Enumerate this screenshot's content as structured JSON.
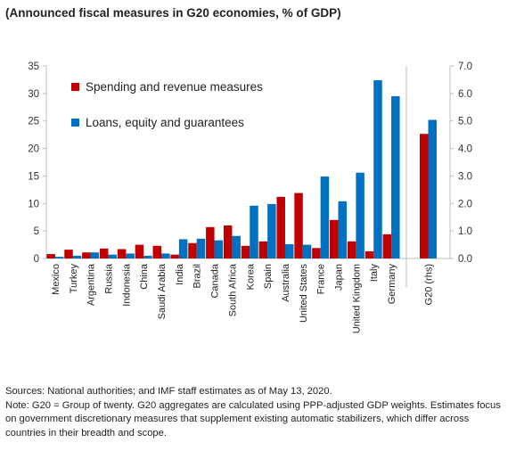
{
  "chart_data": {
    "type": "bar",
    "title": "(Announced fiscal measures in G20 economies, % of GDP)",
    "categories": [
      "Mexico",
      "Turkey",
      "Argentina",
      "Russia",
      "Indonesia",
      "China",
      "Saudi Arabia",
      "India",
      "Brazil",
      "Canada",
      "South Africa",
      "Korea",
      "Spain",
      "Australia",
      "United States",
      "France",
      "Japan",
      "United Kingdom",
      "Italy",
      "Germany"
    ],
    "series": [
      {
        "name": "Spending and revenue measures",
        "color": "#c00000",
        "values": [
          0.8,
          1.6,
          1.1,
          1.8,
          1.7,
          2.5,
          2.3,
          0.7,
          2.8,
          5.7,
          6.0,
          2.3,
          3.1,
          11.2,
          11.9,
          1.9,
          7.0,
          3.1,
          1.3,
          4.4
        ]
      },
      {
        "name": "Loans, equity and guarantees",
        "color": "#0070c0",
        "values": [
          0.3,
          0.5,
          1.1,
          0.7,
          0.9,
          0.5,
          0.9,
          3.5,
          3.6,
          3.3,
          4.1,
          9.6,
          9.9,
          2.6,
          2.5,
          14.9,
          10.4,
          15.6,
          32.4,
          29.5
        ]
      }
    ],
    "ylim": [
      0,
      35
    ],
    "yticks": [
      "0",
      "5",
      "10",
      "15",
      "20",
      "25",
      "30",
      "35"
    ],
    "secondary": {
      "category": "G20 (rhs)",
      "values": [
        4.53,
        5.04
      ],
      "ylim": [
        0,
        7
      ],
      "yticks": [
        "0.0",
        "1.0",
        "2.0",
        "3.0",
        "4.0",
        "5.0",
        "6.0",
        "7.0"
      ]
    },
    "legend": "top-left",
    "grid": false
  },
  "notes": {
    "sources": "Sources: National authorities; and IMF staff estimates as of May 13, 2020.",
    "note": "Note: G20 = Group of twenty. G20 aggregates are calculated using PPP-adjusted GDP weights. Estimates focus on government discretionary measures that supplement existing automatic stabilizers, which differ across countries in their breadth and scope."
  }
}
